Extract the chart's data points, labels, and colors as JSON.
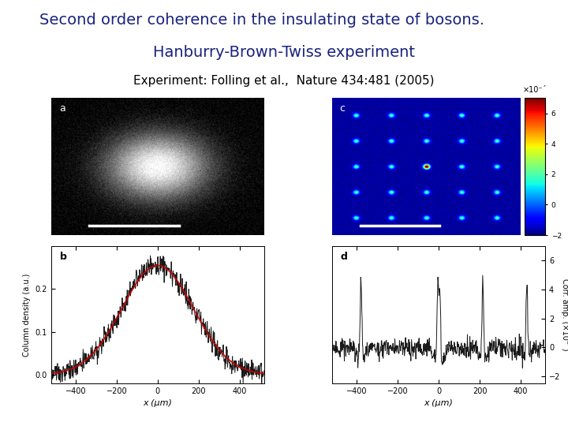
{
  "title_line1": "Second order coherence in the insulating state of bosons.",
  "title_line2": "Hanburry-Brown-Twiss experiment",
  "subtitle": "Experiment: Folling et al.,  Nature 434:481 (2005)",
  "title_color": "#1a237e",
  "subtitle_color": "#000000",
  "bg_color": "#ffffff",
  "title_fontsize": 14,
  "title_line2_fontsize": 14,
  "subtitle_fontsize": 11,
  "xlabel": "x (μm)",
  "ylabel_b": "Column density (a.u.)",
  "ylabel_d": "Corr. amp. (×10⁻´)",
  "colorbar_label": "×10⁻´",
  "colorbar_ticks": [
    -2,
    0,
    2,
    4,
    6
  ],
  "xticks_bottom": [
    -400,
    -200,
    0,
    200,
    400
  ],
  "yticks_b": [
    0,
    0.1,
    0.2
  ],
  "yticks_d": [
    -2,
    0,
    2,
    4,
    6
  ]
}
